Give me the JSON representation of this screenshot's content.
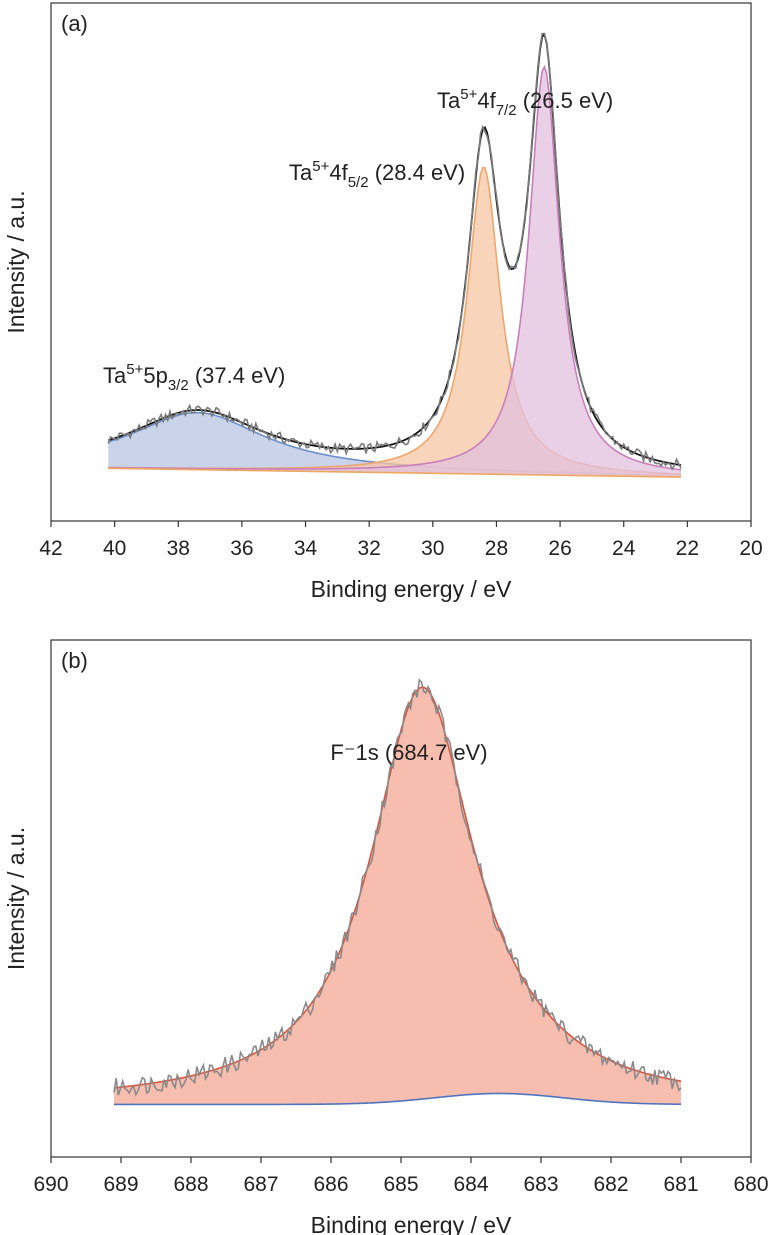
{
  "chart_data": [
    {
      "panel_label": "(a)",
      "type": "line",
      "xlabel": "Binding energy / eV",
      "ylabel": "Intensity / a.u.",
      "xlim": [
        42,
        20
      ],
      "xticks": [
        "42",
        "40",
        "38",
        "36",
        "34",
        "32",
        "30",
        "28",
        "26",
        "24",
        "22",
        "20"
      ],
      "x_reversed": true,
      "ylim": [
        -0.12,
        1.06
      ],
      "yticks_shown": false,
      "data_range": [
        40.2,
        22.2
      ],
      "background": {
        "start": [
          40.2,
          0.0
        ],
        "end": [
          22.2,
          -0.02
        ]
      },
      "series": [
        {
          "peak": "Ta 5p3/2",
          "center": 37.4,
          "height": 0.13,
          "width": 2.6,
          "fill": "#b7c5e4",
          "edge": "#6e8fc8"
        },
        {
          "peak": "Ta 4f5/2",
          "center": 28.4,
          "height": 0.7,
          "width": 0.62,
          "fill": "#f6c6a4",
          "edge": "#eea66f"
        },
        {
          "peak": "Ta 4f7/2",
          "center": 26.5,
          "height": 0.93,
          "width": 0.58,
          "fill": "#e3c0dd",
          "edge": "#c97fbc"
        }
      ],
      "annotations": [
        {
          "base": "Ta",
          "sup": "5+",
          "main": "5p",
          "sub": "3/2",
          "tail": " (37.4 eV)"
        },
        {
          "base": "Ta",
          "sup": "5+",
          "main": "4f",
          "sub": "5/2",
          "tail": " (28.4 eV)"
        },
        {
          "base": "Ta",
          "sup": "5+",
          "main": "4f",
          "sub": "7/2",
          "tail": " (26.5 eV)"
        }
      ],
      "colors": {
        "envelope": "#111111",
        "raw": "#7a7a7a",
        "background": "#f0a860"
      }
    },
    {
      "panel_label": "(b)",
      "type": "line",
      "xlabel": "Binding energy / eV",
      "ylabel": "Intensity / a.u.",
      "xlim": [
        690,
        680
      ],
      "xticks": [
        "690",
        "689",
        "688",
        "687",
        "686",
        "685",
        "684",
        "683",
        "682",
        "681",
        "680"
      ],
      "x_reversed": true,
      "ylim": [
        -0.12,
        1.06
      ],
      "yticks_shown": false,
      "data_range": [
        689.1,
        681.0
      ],
      "series": [
        {
          "peak": "F 1s",
          "center": 684.7,
          "height": 0.94,
          "width": 0.9,
          "fill": "#f4a895",
          "edge": "#d9553f"
        }
      ],
      "background_bump": {
        "center": 683.6,
        "height": 0.025,
        "width": 1.3,
        "color": "#4f74bd"
      },
      "annotations": [
        {
          "text": "F⁻1s (684.7 eV)"
        }
      ],
      "colors": {
        "raw": "#8a8a8a"
      }
    }
  ]
}
